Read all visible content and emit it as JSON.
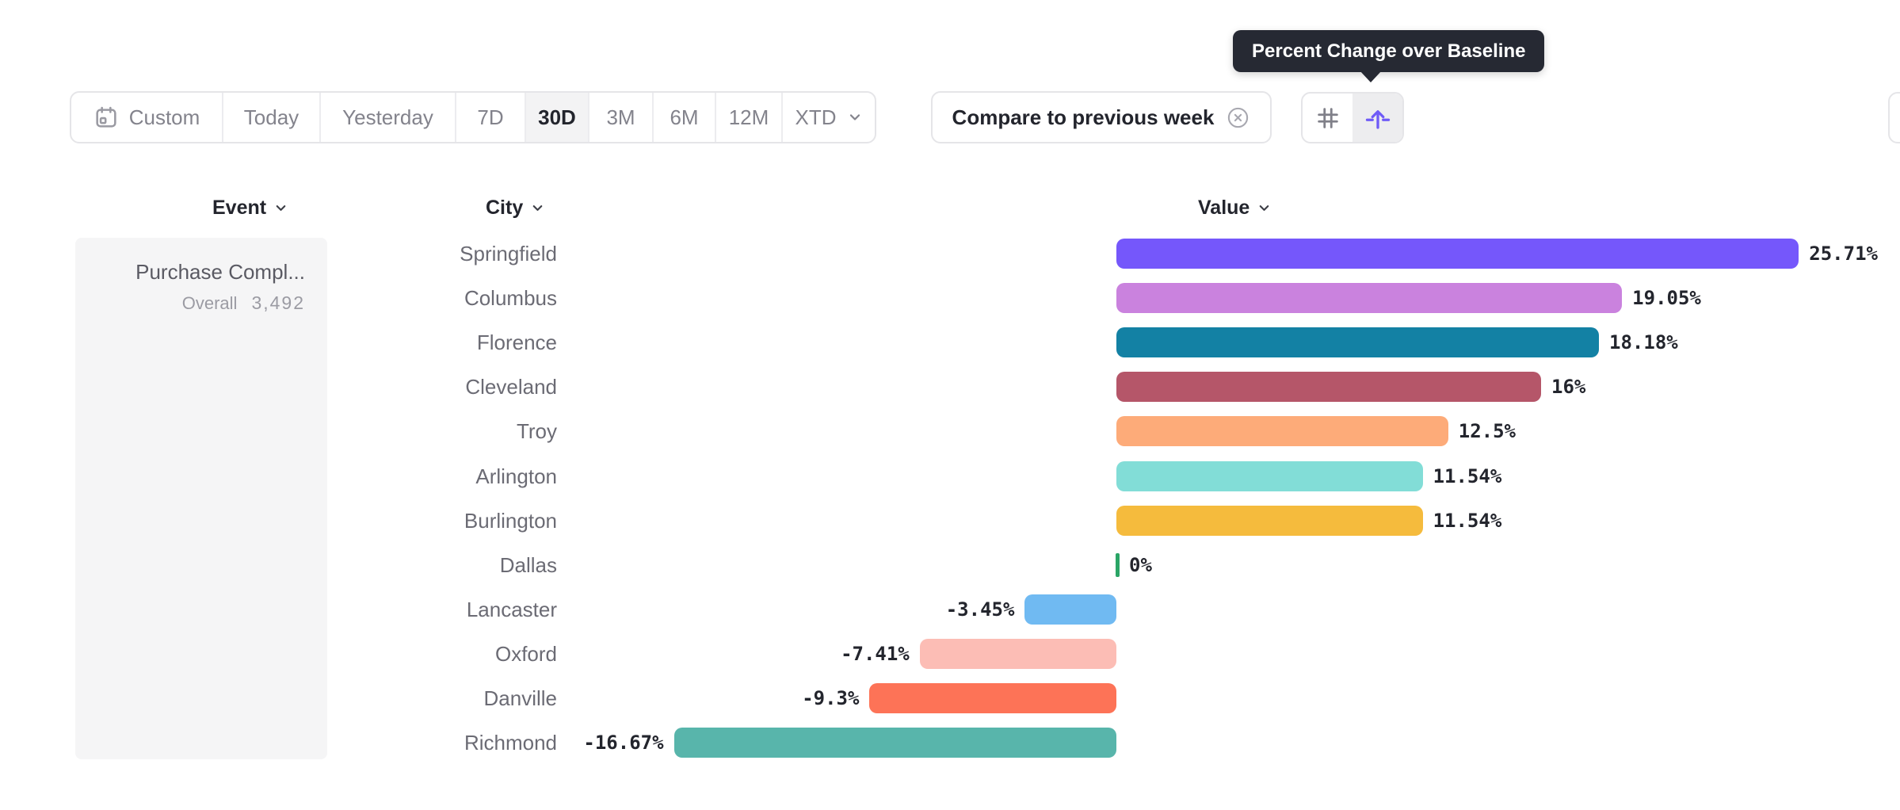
{
  "tooltip": {
    "text": "Percent Change over Baseline"
  },
  "toolbar": {
    "date_ranges": [
      {
        "label": "Custom",
        "icon": "calendar",
        "selected": false
      },
      {
        "label": "Today",
        "selected": false
      },
      {
        "label": "Yesterday",
        "selected": false
      },
      {
        "label": "7D",
        "selected": false
      },
      {
        "label": "30D",
        "selected": true
      },
      {
        "label": "3M",
        "selected": false
      },
      {
        "label": "6M",
        "selected": false
      },
      {
        "label": "12M",
        "selected": false
      },
      {
        "label": "XTD",
        "chevron": true,
        "selected": false
      }
    ],
    "compare_label": "Compare to previous week",
    "view_toggle": [
      {
        "name": "grid-view",
        "icon": "grid",
        "selected": false
      },
      {
        "name": "percent-change-over-baseline-view",
        "icon": "baseline-arrow",
        "selected": true
      }
    ],
    "accent_color": "#6f5bf7"
  },
  "columns": [
    {
      "label": "Event"
    },
    {
      "label": "City"
    },
    {
      "label": "Value"
    }
  ],
  "event_card": {
    "title": "Purchase Compl...",
    "overall_label": "Overall",
    "overall_value": "3,492"
  },
  "chart_data": {
    "type": "bar",
    "orientation": "horizontal",
    "title": "Percent Change over Baseline",
    "value_format": "percent change vs baseline",
    "baseline": 0,
    "categories": [
      "Springfield",
      "Columbus",
      "Florence",
      "Cleveland",
      "Troy",
      "Arlington",
      "Burlington",
      "Dallas",
      "Lancaster",
      "Oxford",
      "Danville",
      "Richmond"
    ],
    "values": [
      25.71,
      19.05,
      18.18,
      16,
      12.5,
      11.54,
      11.54,
      0,
      -3.45,
      -7.41,
      -9.3,
      -16.67
    ],
    "value_labels": [
      "25.71%",
      "19.05%",
      "18.18%",
      "16%",
      "12.5%",
      "11.54%",
      "11.54%",
      "0%",
      "-3.45%",
      "-7.41%",
      "-9.3%",
      "-16.67%"
    ],
    "colors": [
      "#7557fb",
      "#ca82de",
      "#1381a4",
      "#b55669",
      "#fdab79",
      "#82ddd7",
      "#f5bb3d",
      "#2aa566",
      "#70baf2",
      "#fcbdb5",
      "#fd7357",
      "#58b5ab"
    ],
    "xlim": [
      -16.67,
      25.71
    ],
    "grid": false,
    "legend": false
  }
}
